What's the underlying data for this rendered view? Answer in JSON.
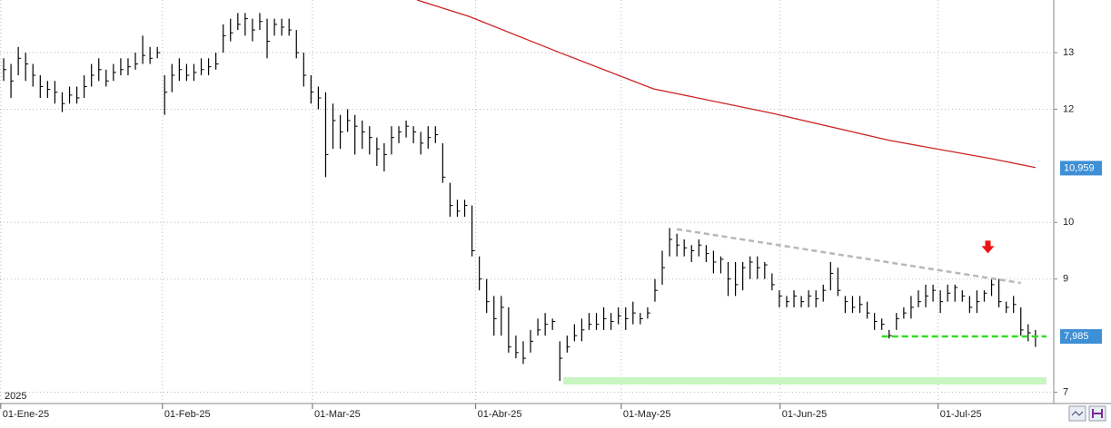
{
  "chart_data": {
    "type": "ohlc",
    "year_label": "2025",
    "xlim": [
      -0.5,
      143.5
    ],
    "ylim": [
      6.8,
      13.93
    ],
    "xticks": [
      {
        "value": -0.4,
        "label": "01-Ene-25"
      },
      {
        "value": 21.7,
        "label": "01-Feb-25"
      },
      {
        "value": 42.2,
        "label": "01-Mar-25"
      },
      {
        "value": 64.5,
        "label": "01-Abr-25"
      },
      {
        "value": 84.4,
        "label": "01-May-25"
      },
      {
        "value": 106.1,
        "label": "01-Jun-25"
      },
      {
        "value": 127.7,
        "label": "01-Jul-25"
      }
    ],
    "yticks": [
      7,
      9,
      10,
      12,
      13
    ],
    "grid": true,
    "bar_color": "#000000",
    "close": [
      12.7,
      12.5,
      12.9,
      12.8,
      12.6,
      12.4,
      12.35,
      12.3,
      12.1,
      12.25,
      12.2,
      12.4,
      12.6,
      12.7,
      12.5,
      12.65,
      12.7,
      12.75,
      12.8,
      12.95,
      12.9,
      13.0,
      12.3,
      12.6,
      12.7,
      12.6,
      12.65,
      12.7,
      12.75,
      12.8,
      13.3,
      13.35,
      13.5,
      13.6,
      13.4,
      13.55,
      13.2,
      13.5,
      13.45,
      13.4,
      13.0,
      12.6,
      12.3,
      12.2,
      11.2,
      11.8,
      11.6,
      11.8,
      11.7,
      11.6,
      11.5,
      11.3,
      11.2,
      11.5,
      11.6,
      11.7,
      11.6,
      11.4,
      11.5,
      11.55,
      10.8,
      10.3,
      10.2,
      10.3,
      9.5,
      9.0,
      8.6,
      8.3,
      8.5,
      7.8,
      7.7,
      7.6,
      7.9,
      8.1,
      8.2,
      8.25,
      7.6,
      7.8,
      8.0,
      8.1,
      8.2,
      8.2,
      8.3,
      8.25,
      8.35,
      8.3,
      8.4,
      8.3,
      8.4,
      8.8,
      9.2,
      9.7,
      9.6,
      9.55,
      9.5,
      9.6,
      9.45,
      9.3,
      9.35,
      9.0,
      8.9,
      9.2,
      9.3,
      9.2,
      9.25,
      8.9,
      8.7,
      8.6,
      8.7,
      8.6,
      8.7,
      8.65,
      8.8,
      9.1,
      8.8,
      8.6,
      8.5,
      8.55,
      8.4,
      8.25,
      8.2,
      8.0,
      8.3,
      8.4,
      8.5,
      8.6,
      8.7,
      8.8,
      8.6,
      8.75,
      8.85,
      8.7,
      8.5,
      8.6,
      8.75,
      8.9,
      8.6,
      8.5,
      8.55,
      8.1,
      8.05,
      7.985
    ],
    "high": [
      12.9,
      12.8,
      13.1,
      13.0,
      12.8,
      12.6,
      12.5,
      12.5,
      12.3,
      12.4,
      12.4,
      12.6,
      12.8,
      12.9,
      12.7,
      12.8,
      12.9,
      12.9,
      13.0,
      13.3,
      13.1,
      13.1,
      12.6,
      12.8,
      12.9,
      12.8,
      12.8,
      12.9,
      12.9,
      13.0,
      13.5,
      13.6,
      13.7,
      13.7,
      13.6,
      13.7,
      13.6,
      13.6,
      13.6,
      13.6,
      13.4,
      13.0,
      12.6,
      12.4,
      12.3,
      12.1,
      11.9,
      12.0,
      11.9,
      11.8,
      11.7,
      11.5,
      11.4,
      11.7,
      11.7,
      11.8,
      11.7,
      11.6,
      11.7,
      11.7,
      11.4,
      10.7,
      10.4,
      10.4,
      10.3,
      9.4,
      9.0,
      8.7,
      8.7,
      8.5,
      8.0,
      7.9,
      8.1,
      8.3,
      8.4,
      8.3,
      7.9,
      8.0,
      8.2,
      8.3,
      8.4,
      8.4,
      8.5,
      8.4,
      8.5,
      8.5,
      8.6,
      8.4,
      8.5,
      9.0,
      9.5,
      9.9,
      9.8,
      9.7,
      9.6,
      9.7,
      9.6,
      9.5,
      9.4,
      9.3,
      9.3,
      9.3,
      9.4,
      9.4,
      9.3,
      9.1,
      8.8,
      8.7,
      8.8,
      8.7,
      8.8,
      8.8,
      8.9,
      9.3,
      9.2,
      8.7,
      8.7,
      8.7,
      8.6,
      8.4,
      8.3,
      8.1,
      8.4,
      8.5,
      8.7,
      8.8,
      8.9,
      8.9,
      8.8,
      8.9,
      8.9,
      8.8,
      8.7,
      8.8,
      8.8,
      9.0,
      9.0,
      8.6,
      8.7,
      8.5,
      8.2,
      8.1
    ],
    "low": [
      12.5,
      12.2,
      12.6,
      12.5,
      12.4,
      12.2,
      12.2,
      12.1,
      11.95,
      12.1,
      12.1,
      12.2,
      12.4,
      12.5,
      12.4,
      12.5,
      12.6,
      12.6,
      12.7,
      12.8,
      12.8,
      12.9,
      11.9,
      12.3,
      12.5,
      12.5,
      12.5,
      12.6,
      12.6,
      12.7,
      13.0,
      13.2,
      13.4,
      13.3,
      13.2,
      13.4,
      12.9,
      13.3,
      13.3,
      13.3,
      12.9,
      12.4,
      12.1,
      12.0,
      10.8,
      11.3,
      11.3,
      11.6,
      11.2,
      11.3,
      11.2,
      11.0,
      10.9,
      11.2,
      11.4,
      11.5,
      11.4,
      11.2,
      11.3,
      11.4,
      10.7,
      10.1,
      10.1,
      10.1,
      9.4,
      8.8,
      8.4,
      8.0,
      8.0,
      7.7,
      7.6,
      7.5,
      7.7,
      8.0,
      8.0,
      8.1,
      7.2,
      7.7,
      7.9,
      7.9,
      8.1,
      8.1,
      8.1,
      8.1,
      8.2,
      8.1,
      8.2,
      8.2,
      8.3,
      8.6,
      8.9,
      9.4,
      9.4,
      9.4,
      9.3,
      9.4,
      9.3,
      9.1,
      9.1,
      8.7,
      8.7,
      8.8,
      9.0,
      9.0,
      9.0,
      8.8,
      8.5,
      8.5,
      8.5,
      8.5,
      8.5,
      8.5,
      8.6,
      8.8,
      8.7,
      8.4,
      8.4,
      8.4,
      8.3,
      8.1,
      8.1,
      7.95,
      8.1,
      8.3,
      8.3,
      8.5,
      8.5,
      8.6,
      8.4,
      8.6,
      8.6,
      8.6,
      8.4,
      8.4,
      8.6,
      8.7,
      8.5,
      8.4,
      8.4,
      8.0,
      7.9,
      7.8
    ],
    "moving_average": {
      "color": "#cc2222",
      "x": [
        56.5,
        63.6,
        76,
        88.8,
        105,
        121,
        134.8,
        141
      ],
      "values": [
        13.93,
        13.64,
        13.0,
        12.36,
        11.93,
        11.45,
        11.13,
        10.97
      ]
    },
    "trendline": {
      "color": "#b8b8b8",
      "x": [
        92,
        139
      ],
      "values": [
        9.88,
        8.93
      ]
    },
    "support_line": {
      "color": "#33dd22",
      "x": [
        120,
        142.5
      ],
      "value": 7.985
    },
    "support_zone": {
      "color": "#c8f5c0",
      "x": [
        76.5,
        142.5
      ],
      "value": 7.2
    },
    "arrow": {
      "color": "#ee1111",
      "x": 134.5,
      "value": 9.55
    },
    "price_labels": [
      {
        "value": 10.959,
        "label": "10,959"
      },
      {
        "value": 7.985,
        "label": "7,985"
      }
    ]
  }
}
